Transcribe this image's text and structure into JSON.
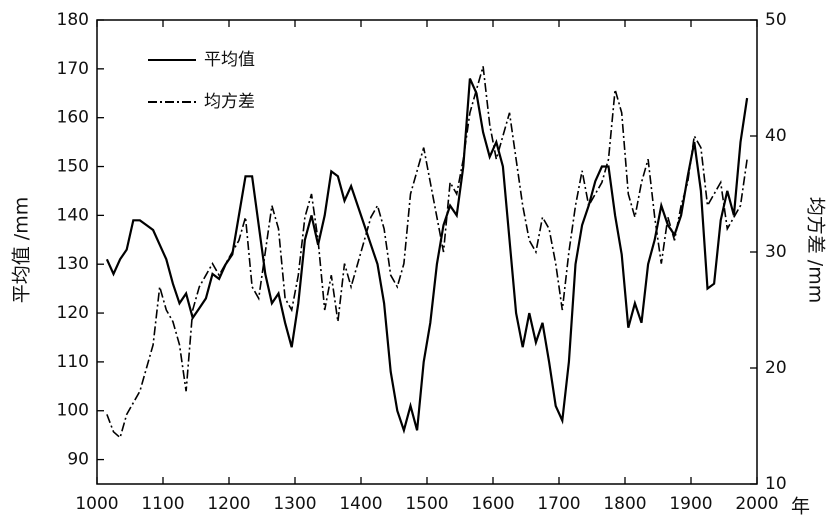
{
  "chart_data": {
    "type": "line",
    "x_label": "年",
    "y_label": "平均值 /mm",
    "y2_label": "均方差 /mm",
    "xlim": [
      1000,
      2000
    ],
    "xticks": [
      1000,
      1100,
      1200,
      1300,
      1400,
      1500,
      1600,
      1700,
      1800,
      1900,
      2000
    ],
    "ylim": [
      85,
      180
    ],
    "yticks": [
      90,
      100,
      110,
      120,
      130,
      140,
      150,
      160,
      170,
      180
    ],
    "y2lim": [
      10,
      50
    ],
    "y2ticks": [
      10,
      20,
      30,
      40,
      50
    ],
    "legend": "top-left",
    "x": [
      1015,
      1025,
      1035,
      1045,
      1055,
      1065,
      1075,
      1085,
      1095,
      1105,
      1115,
      1125,
      1135,
      1145,
      1155,
      1165,
      1175,
      1185,
      1195,
      1205,
      1215,
      1225,
      1235,
      1245,
      1255,
      1265,
      1275,
      1285,
      1295,
      1305,
      1315,
      1325,
      1335,
      1345,
      1355,
      1365,
      1375,
      1385,
      1395,
      1405,
      1415,
      1425,
      1435,
      1445,
      1455,
      1465,
      1475,
      1485,
      1495,
      1505,
      1515,
      1525,
      1535,
      1545,
      1555,
      1565,
      1575,
      1585,
      1595,
      1605,
      1615,
      1625,
      1635,
      1645,
      1655,
      1665,
      1675,
      1685,
      1695,
      1705,
      1715,
      1725,
      1735,
      1745,
      1755,
      1765,
      1775,
      1785,
      1795,
      1805,
      1815,
      1825,
      1835,
      1845,
      1855,
      1865,
      1875,
      1885,
      1895,
      1905,
      1915,
      1925,
      1935,
      1945,
      1955,
      1965,
      1975,
      1985
    ],
    "series": [
      {
        "name": "平均值",
        "color": "#000000",
        "dash": "solid",
        "values": [
          131,
          128,
          131,
          133,
          139,
          139,
          138,
          137,
          134,
          131,
          126,
          122,
          124,
          119,
          121,
          123,
          128,
          127,
          130,
          132,
          140,
          148,
          148,
          138,
          128,
          122,
          124,
          118,
          113,
          122,
          135,
          140,
          134,
          140,
          149,
          148,
          143,
          146,
          142,
          138,
          134,
          130,
          122,
          108,
          100,
          96,
          101,
          96,
          110,
          118,
          130,
          138,
          142,
          140,
          150,
          168,
          165,
          157,
          152,
          155,
          150,
          135,
          120,
          113,
          120,
          114,
          118,
          110,
          101,
          98,
          110,
          130,
          138,
          142,
          147,
          150,
          150,
          140,
          132,
          117,
          122,
          118,
          130,
          135,
          142,
          138,
          136,
          140,
          148,
          155,
          145,
          125,
          126,
          139,
          145,
          140,
          155,
          164
        ]
      },
      {
        "name": "均方差",
        "color": "#000000",
        "dash": "dash-dot",
        "axis": "y2",
        "values": [
          16,
          14.5,
          14,
          16,
          17,
          18,
          20,
          22,
          27,
          25,
          24,
          22,
          18,
          25,
          27,
          28,
          29,
          28,
          29,
          30,
          31,
          33,
          27,
          26,
          30,
          34,
          32,
          26,
          25,
          28,
          33,
          35,
          31,
          25,
          28,
          24,
          29,
          27,
          29,
          31,
          33,
          34,
          32,
          28,
          27,
          29,
          35,
          37,
          39,
          36,
          33,
          30,
          36,
          35,
          38,
          42,
          44,
          46,
          41,
          38,
          40,
          42,
          38,
          34,
          31,
          30,
          33,
          32,
          29,
          25,
          30,
          34,
          37,
          34,
          35,
          36,
          38,
          44,
          42,
          35,
          33,
          36,
          38,
          33,
          29,
          33,
          31,
          34,
          36,
          40,
          39,
          34,
          35,
          36,
          32,
          33,
          34,
          38
        ]
      }
    ]
  }
}
